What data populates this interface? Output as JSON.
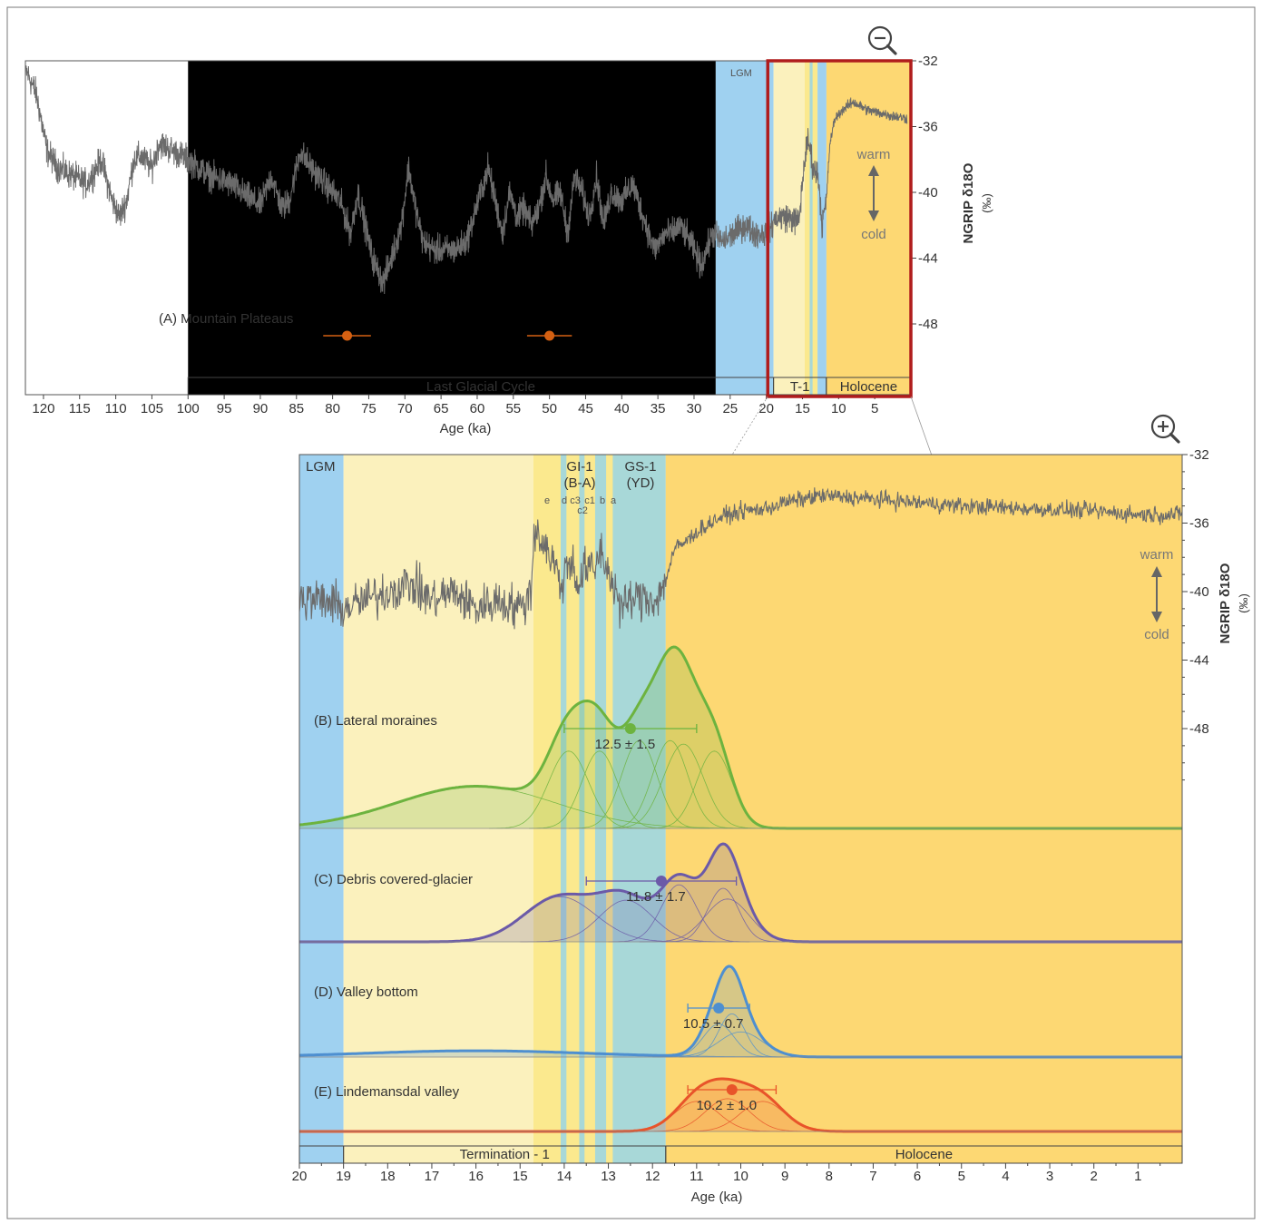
{
  "colors": {
    "glacial_light": "#cfe8f7",
    "lgm": "#9fd1f0",
    "t1_light": "#fbf1bd",
    "t1_yellow": "#fbe98e",
    "interstadial_teal": "#a8d8d8",
    "holocene": "#fdd873",
    "record_line": "#6b6b6b",
    "zoom_box": "#b01c1c",
    "orange_marker": "#d46012",
    "green": "#6db33f",
    "purple": "#6b5aa8",
    "blue": "#4e8fd0",
    "red_orange": "#e8542a"
  },
  "icons": {
    "zoom_out": "zoom-out-magnifier-icon",
    "zoom_in": "zoom-in-magnifier-icon"
  },
  "top": {
    "lgm_label": "LGM",
    "periods": {
      "glacial": "Last Glacial Cycle",
      "t1": "T-1",
      "holocene": "Holocene"
    },
    "warm": "warm",
    "cold": "cold",
    "panel_label": "(A) Mountain Plateaus",
    "ylabel": "NGRIP δ18O",
    "yunit": "(‰)",
    "xlabel": "Age (ka)"
  },
  "bottom": {
    "lgm_label": "LGM",
    "gi1": "GI-1",
    "gi1_sub": "(B-A)",
    "gs1": "GS-1",
    "gs1_sub": "(YD)",
    "sub_e": "e",
    "sub_d": "d",
    "sub_c3": "c3",
    "sub_c1": "c1",
    "sub_b": "b",
    "sub_a": "a",
    "sub_c2": "c2",
    "warm": "warm",
    "cold": "cold",
    "ylabel": "NGRIP δ18O",
    "yunit": "(‰)",
    "xlabel": "Age (ka)",
    "termination": "Termination - 1",
    "holocene": "Holocene"
  },
  "chart_data": [
    {
      "type": "line",
      "panel": "A",
      "xlabel": "Age (ka)",
      "ylabel": "NGRIP δ18O (‰)",
      "x_ticks": [
        120,
        115,
        110,
        105,
        100,
        95,
        90,
        85,
        80,
        75,
        70,
        65,
        60,
        55,
        50,
        45,
        40,
        35,
        30,
        25,
        20,
        15,
        10,
        5
      ],
      "y_ticks": [
        -32,
        -36,
        -40,
        -44,
        -48
      ],
      "xlim": [
        122.5,
        0
      ],
      "ylim": [
        -52,
        -32
      ],
      "x_reversed": true,
      "periods": [
        {
          "name": "Last Glacial Cycle",
          "start": 100,
          "end": 19
        },
        {
          "name": "T-1",
          "start": 19,
          "end": 11.7
        },
        {
          "name": "Holocene",
          "start": 11.7,
          "end": 0
        }
      ],
      "shading": [
        {
          "zone": "glacial",
          "start": 100,
          "end": 27
        },
        {
          "zone": "lgm",
          "start": 27,
          "end": 19
        },
        {
          "zone": "t1_light",
          "start": 19,
          "end": 14.7
        },
        {
          "zone": "t1_yellow",
          "start": 14.7,
          "end": 12.9
        },
        {
          "zone": "interstadial_teal",
          "start": 12.9,
          "end": 11.7
        },
        {
          "zone": "holocene",
          "start": 11.7,
          "end": 0
        }
      ],
      "zoom_window": [
        19.8,
        0
      ],
      "ngrip_anchors": [
        [
          122.5,
          -32.5
        ],
        [
          121,
          -34
        ],
        [
          119.5,
          -37.5
        ],
        [
          118,
          -38.5
        ],
        [
          116,
          -39
        ],
        [
          114,
          -39.5
        ],
        [
          112,
          -38
        ],
        [
          110.5,
          -40.5
        ],
        [
          109.5,
          -41.5
        ],
        [
          108.5,
          -40.5
        ],
        [
          107.5,
          -38
        ],
        [
          106.5,
          -37.8
        ],
        [
          105,
          -38.5
        ],
        [
          104,
          -37
        ],
        [
          102,
          -37.5
        ],
        [
          100,
          -38
        ],
        [
          97,
          -39
        ],
        [
          94,
          -39.5
        ],
        [
          92,
          -40.2
        ],
        [
          90,
          -40.8
        ],
        [
          88.5,
          -39
        ],
        [
          87,
          -41
        ],
        [
          86,
          -40.5
        ],
        [
          84.5,
          -37.5
        ],
        [
          83,
          -38.5
        ],
        [
          81,
          -39.5
        ],
        [
          79,
          -40.5
        ],
        [
          77.5,
          -42.5
        ],
        [
          76.5,
          -40
        ],
        [
          75.5,
          -42
        ],
        [
          74.5,
          -44
        ],
        [
          73,
          -45.5
        ],
        [
          71.5,
          -43.5
        ],
        [
          70.5,
          -42
        ],
        [
          69.5,
          -38.5
        ],
        [
          68.5,
          -41
        ],
        [
          67.5,
          -43
        ],
        [
          66,
          -43.5
        ],
        [
          64.5,
          -43.5
        ],
        [
          63,
          -43.5
        ],
        [
          61.5,
          -43
        ],
        [
          60.5,
          -41.5
        ],
        [
          59.5,
          -40
        ],
        [
          58.5,
          -38.5
        ],
        [
          57.5,
          -40.5
        ],
        [
          56.5,
          -42.5
        ],
        [
          55.5,
          -40
        ],
        [
          54.5,
          -41.5
        ],
        [
          53.5,
          -41
        ],
        [
          52.5,
          -42
        ],
        [
          51.5,
          -41
        ],
        [
          50.5,
          -39
        ],
        [
          49.5,
          -40.5
        ],
        [
          48.5,
          -40
        ],
        [
          47.5,
          -42.5
        ],
        [
          46.5,
          -39
        ],
        [
          45.5,
          -40
        ],
        [
          44.5,
          -41.5
        ],
        [
          43.5,
          -39
        ],
        [
          42.5,
          -42
        ],
        [
          41.5,
          -40
        ],
        [
          40,
          -40.5
        ],
        [
          38.5,
          -39.5
        ],
        [
          37,
          -41.5
        ],
        [
          35.5,
          -43.5
        ],
        [
          34,
          -42.5
        ],
        [
          33,
          -42.5
        ],
        [
          32,
          -42
        ],
        [
          30.5,
          -43
        ],
        [
          29,
          -44.5
        ],
        [
          27.5,
          -42.5
        ],
        [
          26,
          -43
        ],
        [
          24.5,
          -42.5
        ],
        [
          23,
          -42
        ],
        [
          21.5,
          -42.5
        ],
        [
          20,
          -42.5
        ],
        [
          18.5,
          -41.5
        ],
        [
          17,
          -41.5
        ],
        [
          15.5,
          -41.8
        ],
        [
          14.7,
          -38
        ],
        [
          14.2,
          -36.8
        ],
        [
          13.5,
          -38.5
        ],
        [
          12.8,
          -39
        ],
        [
          12.3,
          -42
        ],
        [
          11.7,
          -40.5
        ],
        [
          11.2,
          -37
        ],
        [
          10.5,
          -35.5
        ],
        [
          9.5,
          -35
        ],
        [
          8,
          -34.5
        ],
        [
          6,
          -35
        ],
        [
          4,
          -35.2
        ],
        [
          2,
          -35.4
        ],
        [
          0.5,
          -35.5
        ]
      ],
      "mountain_plateaus": [
        {
          "age": 78,
          "err": 3.3
        },
        {
          "age": 50,
          "err": 3.1
        }
      ],
      "annotations": [
        "LGM",
        "warm",
        "cold",
        "(A) Mountain Plateaus"
      ]
    },
    {
      "type": "area",
      "panel": "B-E",
      "xlabel": "Age (ka)",
      "ylabel": "NGRIP δ18O (‰)",
      "x_ticks": [
        20,
        19,
        18,
        17,
        16,
        15,
        14,
        13,
        12,
        11,
        10,
        9,
        8,
        7,
        6,
        5,
        4,
        3,
        2,
        1
      ],
      "y_ticks": [
        -32,
        -36,
        -40,
        -44,
        -48
      ],
      "xlim": [
        20,
        0
      ],
      "ylim": [
        -52,
        -32
      ],
      "x_reversed": true,
      "periods": [
        {
          "name": "Termination - 1",
          "start": 19,
          "end": 11.7
        },
        {
          "name": "Holocene",
          "start": 11.7,
          "end": 0
        }
      ],
      "shading": [
        {
          "zone": "lgm",
          "start": 20,
          "end": 19
        },
        {
          "zone": "t1_light",
          "start": 19,
          "end": 14.7
        },
        {
          "zone": "t1_yellow",
          "start": 14.7,
          "end": 11.7
        },
        {
          "zone": "interstadial_teal",
          "start": 14.08,
          "end": 13.95
        },
        {
          "zone": "interstadial_teal",
          "start": 13.66,
          "end": 13.54
        },
        {
          "zone": "interstadial_teal",
          "start": 13.3,
          "end": 13.05
        },
        {
          "zone": "interstadial_teal",
          "start": 12.9,
          "end": 11.7
        }
      ],
      "ngrip_anchors": [
        [
          20,
          -40.5
        ],
        [
          19.5,
          -40.5
        ],
        [
          19,
          -41
        ],
        [
          18.5,
          -40.5
        ],
        [
          18,
          -40
        ],
        [
          17.5,
          -39.5
        ],
        [
          17,
          -40.5
        ],
        [
          16.5,
          -40
        ],
        [
          16,
          -41
        ],
        [
          15.5,
          -40.5
        ],
        [
          15,
          -41
        ],
        [
          14.75,
          -40
        ],
        [
          14.68,
          -36.3
        ],
        [
          14.5,
          -37
        ],
        [
          14.3,
          -38
        ],
        [
          14.2,
          -38.5
        ],
        [
          14.08,
          -39.8
        ],
        [
          13.95,
          -38.5
        ],
        [
          13.8,
          -38.3
        ],
        [
          13.66,
          -39.8
        ],
        [
          13.54,
          -38.6
        ],
        [
          13.3,
          -38.8
        ],
        [
          13.2,
          -37.5
        ],
        [
          13.05,
          -38.5
        ],
        [
          12.9,
          -39.5
        ],
        [
          12.7,
          -41
        ],
        [
          12.5,
          -40.5
        ],
        [
          12.2,
          -40.3
        ],
        [
          11.9,
          -40.5
        ],
        [
          11.72,
          -39.5
        ],
        [
          11.5,
          -37.5
        ],
        [
          11.2,
          -37
        ],
        [
          11,
          -36.5
        ],
        [
          10.5,
          -35.7
        ],
        [
          10,
          -35.3
        ],
        [
          9.5,
          -35.2
        ],
        [
          9,
          -34.8
        ],
        [
          8.2,
          -34.4
        ],
        [
          7.5,
          -34.5
        ],
        [
          7,
          -34.6
        ],
        [
          6,
          -34.8
        ],
        [
          5,
          -35.0
        ],
        [
          4,
          -35.1
        ],
        [
          3,
          -35.2
        ],
        [
          2,
          -35.3
        ],
        [
          1,
          -35.5
        ],
        [
          0,
          -35.5
        ]
      ],
      "series": [
        {
          "name": "(B) Lateral moraines",
          "color": "green",
          "label": "12.5 ± 1.5",
          "age": 12.5,
          "err_minus": 1.5,
          "err_plus": 1.5,
          "components": [
            {
              "mu": 16.0,
              "sigma": 1.8,
              "amp": 0.12
            },
            {
              "mu": 13.9,
              "sigma": 0.45,
              "amp": 0.22
            },
            {
              "mu": 13.2,
              "sigma": 0.4,
              "amp": 0.22
            },
            {
              "mu": 12.3,
              "sigma": 0.4,
              "amp": 0.25
            },
            {
              "mu": 11.6,
              "sigma": 0.4,
              "amp": 0.25
            },
            {
              "mu": 11.3,
              "sigma": 0.45,
              "amp": 0.24
            },
            {
              "mu": 10.6,
              "sigma": 0.4,
              "amp": 0.22
            }
          ]
        },
        {
          "name": "(C) Debris covered-glacier",
          "color": "purple",
          "label": "11.8 ± 1.7",
          "age": 11.8,
          "err_minus": 1.7,
          "err_plus": 1.7,
          "components": [
            {
              "mu": 14.1,
              "sigma": 0.8,
              "amp": 0.38
            },
            {
              "mu": 12.6,
              "sigma": 0.6,
              "amp": 0.35
            },
            {
              "mu": 11.4,
              "sigma": 0.4,
              "amp": 0.48
            },
            {
              "mu": 10.4,
              "sigma": 0.35,
              "amp": 0.45
            },
            {
              "mu": 10.3,
              "sigma": 0.5,
              "amp": 0.36
            }
          ]
        },
        {
          "name": "(D) Valley bottom",
          "color": "blue",
          "label": "10.5 ± 0.7",
          "age": 10.5,
          "err_minus": 0.7,
          "err_plus": 0.7,
          "components": [
            {
              "mu": 16.0,
              "sigma": 2.5,
              "amp": 0.08
            },
            {
              "mu": 10.5,
              "sigma": 0.35,
              "amp": 0.42
            },
            {
              "mu": 10.2,
              "sigma": 0.3,
              "amp": 0.55
            },
            {
              "mu": 10.0,
              "sigma": 0.5,
              "amp": 0.32
            }
          ]
        },
        {
          "name": "(E) Lindemansdal valley",
          "color": "red_orange",
          "label": "10.2 ± 1.0",
          "age": 10.2,
          "err_minus": 1.0,
          "err_plus": 1.0,
          "components": [
            {
              "mu": 11.0,
              "sigma": 0.5,
              "amp": 0.55
            },
            {
              "mu": 10.3,
              "sigma": 0.5,
              "amp": 0.6
            },
            {
              "mu": 9.5,
              "sigma": 0.5,
              "amp": 0.55
            }
          ]
        }
      ],
      "annotations": [
        "LGM",
        "GI-1 (B-A)",
        "GS-1 (YD)",
        "e",
        "d",
        "c3",
        "c1",
        "b",
        "a",
        "c2",
        "warm",
        "cold"
      ]
    }
  ]
}
